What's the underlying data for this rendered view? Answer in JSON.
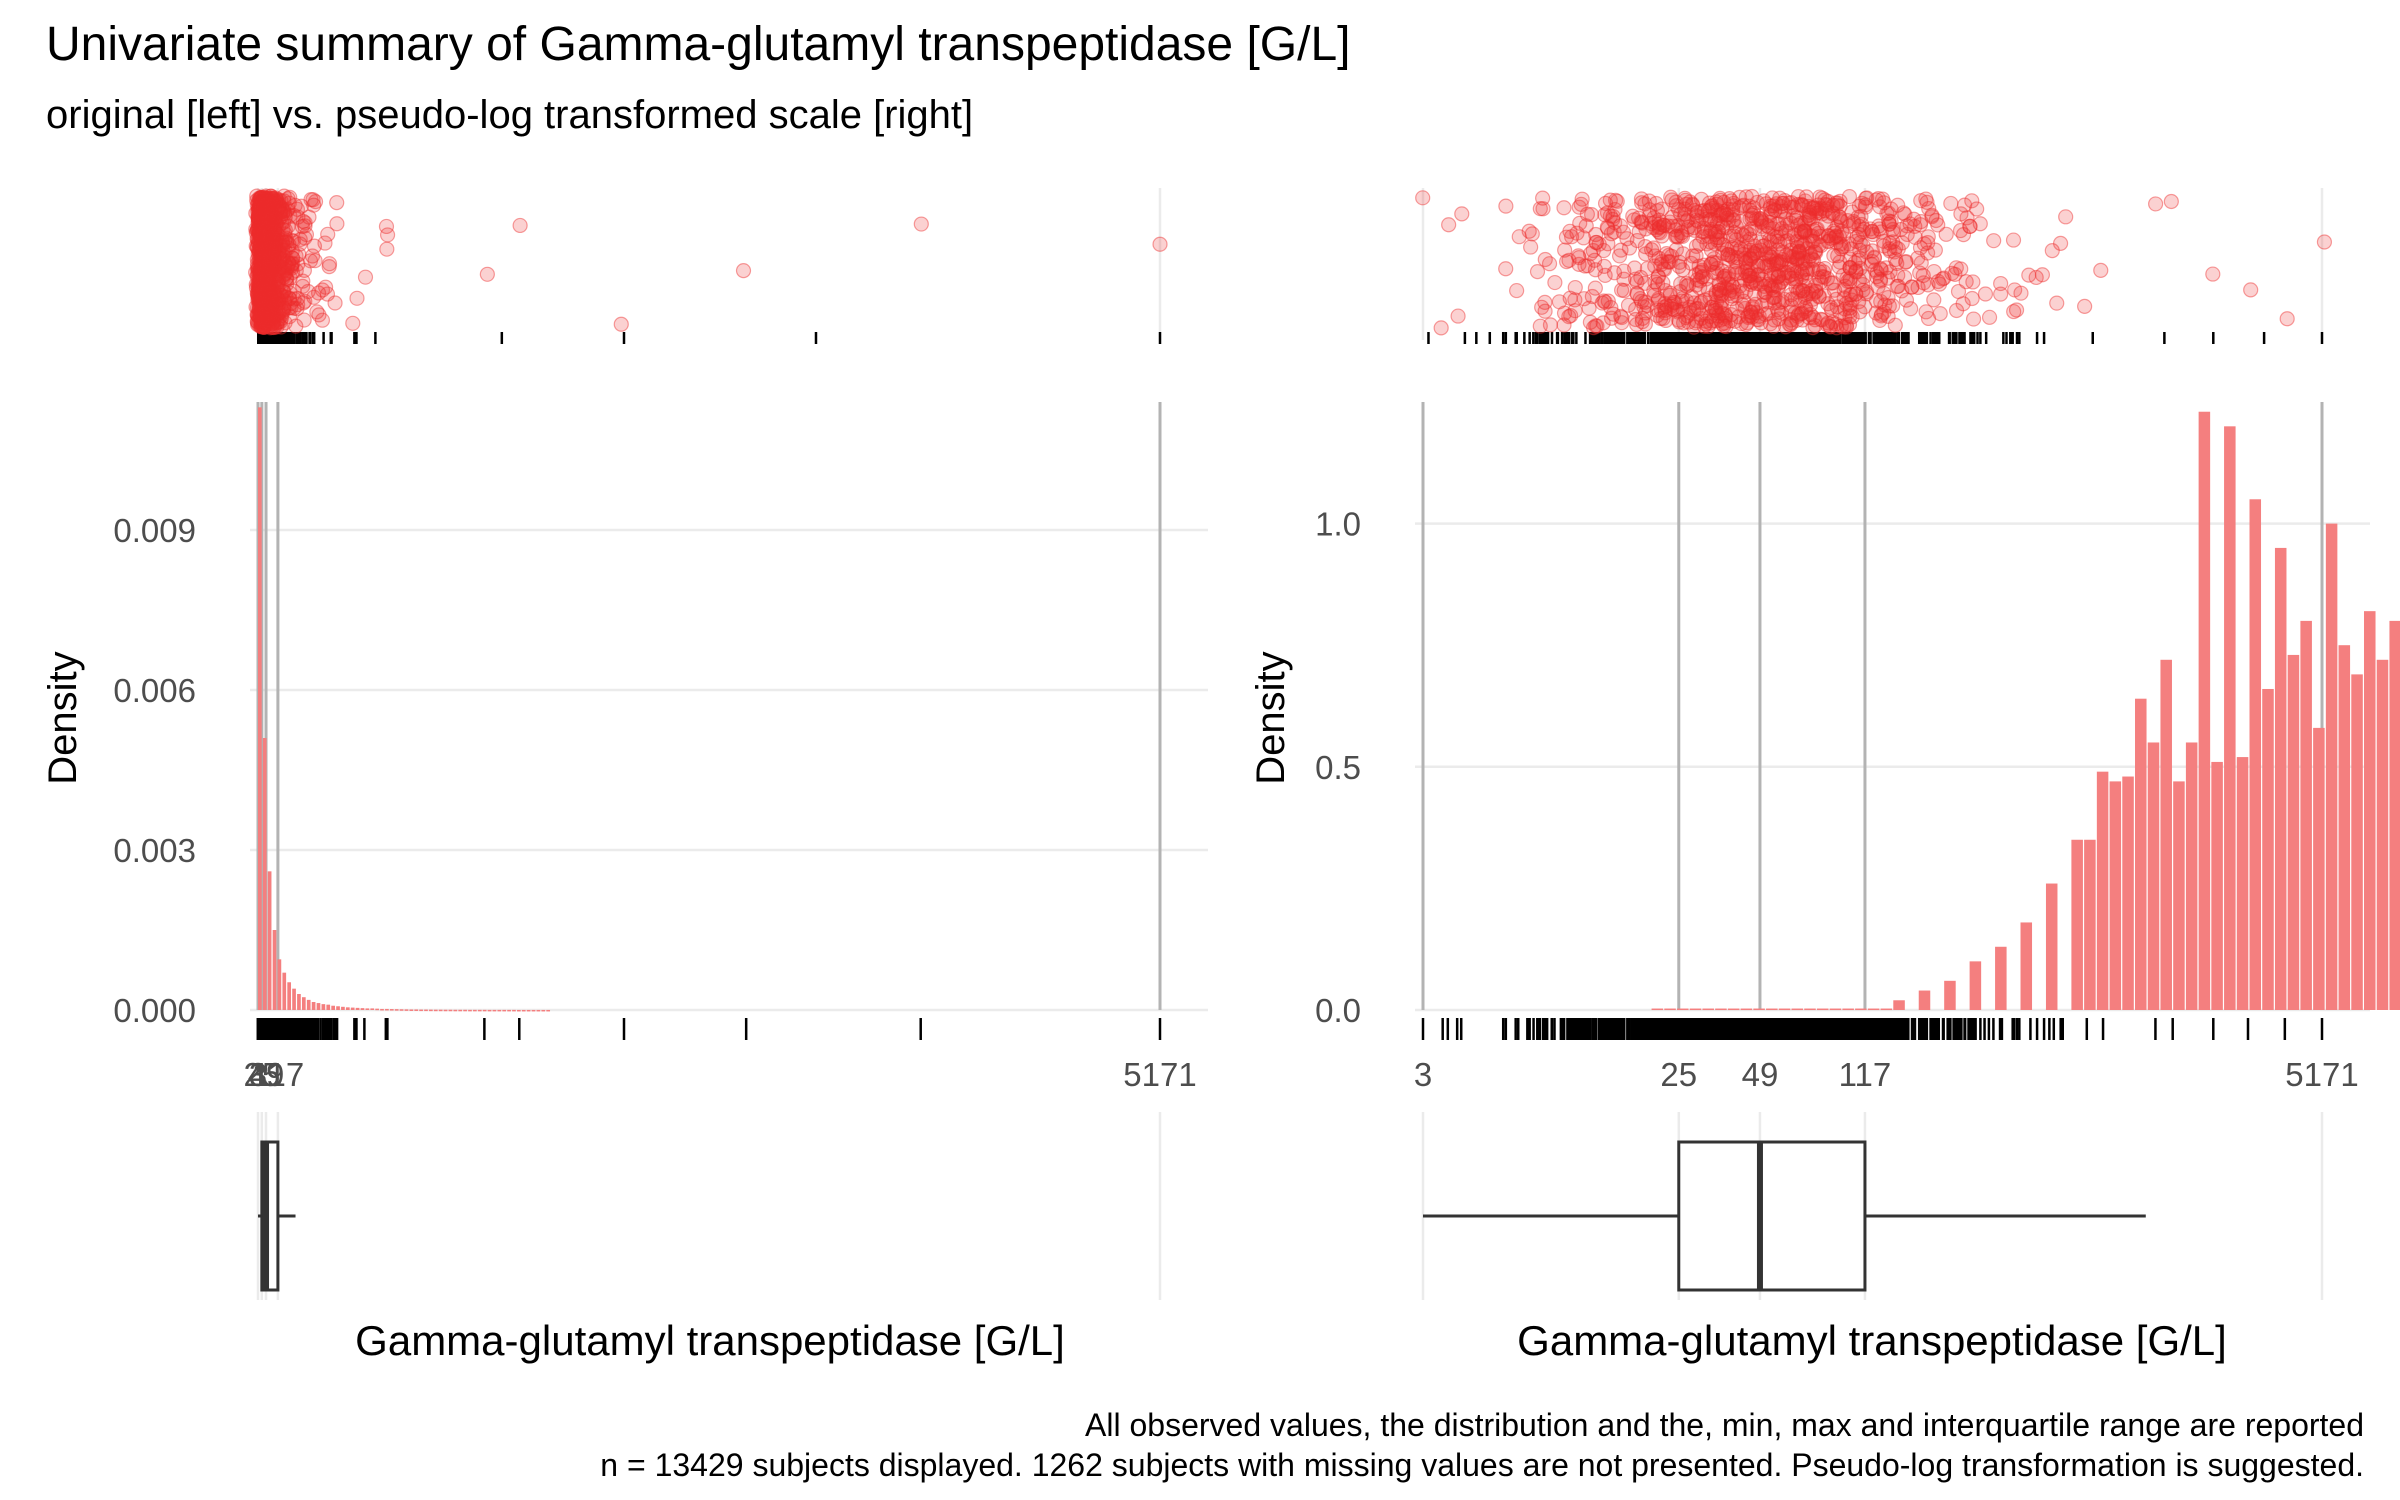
{
  "chart_data": {
    "title": "Univariate summary of Gamma-glutamyl transpeptidase [G/L]",
    "subtitle": "original [left] vs. pseudo-log transformed scale [right]",
    "caption_lines": [
      "All observed values, the distribution and the, min, max and interquartile range are reported",
      "n = 13429 subjects displayed. 1262 subjects with missing values are not presented. Pseudo-log transformation is suggested."
    ],
    "colors": {
      "points": "#EE2C2C",
      "bars": "#F47F7F",
      "grid": "#EBEBEB",
      "vline": "#B3B3B3",
      "text": "#4D4D4D"
    },
    "panels": [
      {
        "name": "original",
        "type": "bar",
        "xlabel": "Gamma-glutamyl transpeptidase [G/L]",
        "ylabel": "Density",
        "x_ticks": [
          3,
          25,
          49,
          117,
          5171
        ],
        "x_tick_labels": [
          "3",
          "25",
          "49",
          "117",
          "5171"
        ],
        "xlim": [
          3,
          5171
        ],
        "ylim": [
          0,
          0.0114
        ],
        "y_ticks": [
          0,
          0.003,
          0.006,
          0.009
        ],
        "y_tick_labels": [
          "0.000",
          "0.003",
          "0.006",
          "0.009"
        ],
        "vlines": [
          3,
          25,
          49,
          117,
          5171
        ],
        "bin_width": 28,
        "bin_start": 3,
        "values": [
          0.0113,
          0.0051,
          0.0026,
          0.0015,
          0.00095,
          0.0007,
          0.00052,
          0.0004,
          0.0003,
          0.00024,
          0.00019,
          0.00015,
          0.00013,
          0.00011,
          0.0001,
          8e-05,
          7e-05,
          6e-05,
          5e-05,
          4.5e-05,
          4e-05,
          3.5e-05,
          3e-05,
          3e-05,
          2.5e-05,
          2e-05,
          2e-05,
          1.8e-05,
          1.6e-05,
          1.4e-05,
          1.2e-05,
          1e-05,
          1e-05,
          8e-06,
          8e-06,
          7e-06,
          6e-06,
          6e-06,
          5e-06,
          5e-06,
          4e-06,
          4e-06,
          4e-06,
          3e-06,
          3e-06,
          3e-06,
          3e-06,
          2e-06,
          2e-06,
          2e-06,
          2e-06,
          2e-06,
          2e-06,
          1e-06,
          1e-06,
          1e-06,
          1e-06,
          1e-06,
          1e-06,
          1e-06
        ],
        "boxplot": {
          "min": 3,
          "q1": 25,
          "median": 49,
          "q3": 117,
          "whisker_high": 218
        }
      },
      {
        "name": "pseudo-log",
        "type": "bar",
        "xlabel": "Gamma-glutamyl transpeptidase [G/L]",
        "ylabel": "Density",
        "x_ticks": [
          3,
          25,
          49,
          117,
          5171
        ],
        "x_tick_labels": [
          "3",
          "25",
          "49",
          "117",
          "5171"
        ],
        "xlim": [
          3,
          5171
        ],
        "ylim": [
          0,
          1.25
        ],
        "y_ticks": [
          0,
          0.5,
          1.0
        ],
        "y_tick_labels": [
          "0.0",
          "0.5",
          "1.0"
        ],
        "vlines": [
          3,
          25,
          49,
          117,
          5171
        ],
        "bin_start_log": 1.3,
        "bin_width_log": 0.0458,
        "values": [
          0.003,
          0.003,
          0.003,
          0.003,
          0.003,
          0.003,
          0.003,
          0.003,
          0.003,
          0.003,
          0.003,
          0.003,
          0.003,
          0.003,
          0.003,
          0.003,
          0.003,
          0.003,
          0.003,
          0.02,
          0.0,
          0.04,
          0.0,
          0.06,
          0.0,
          0.1,
          0.0,
          0.13,
          0.0,
          0.18,
          0.0,
          0.26,
          0.0,
          0.35,
          0.35,
          0.49,
          0.47,
          0.48,
          0.64,
          0.55,
          0.72,
          0.47,
          0.55,
          1.23,
          0.51,
          1.2,
          0.52,
          1.05,
          0.66,
          0.95,
          0.73,
          0.8,
          0.58,
          1.0,
          0.75,
          0.69,
          0.82,
          0.72,
          0.8,
          0.77,
          0.89,
          0.83,
          0.69,
          0.74,
          0.73,
          0.75,
          0.8,
          0.84,
          0.73,
          0.7,
          0.74,
          0.7,
          0.6,
          0.68,
          0.67,
          0.58,
          0.56,
          0.52,
          0.49,
          0.49,
          0.45,
          0.42,
          0.41,
          0.37,
          0.35,
          0.34,
          0.33,
          0.31,
          0.28,
          0.26,
          0.24,
          0.22,
          0.2,
          0.18,
          0.16,
          0.14,
          0.13,
          0.12,
          0.1,
          0.09,
          0.08,
          0.07,
          0.06,
          0.05,
          0.045,
          0.04,
          0.035,
          0.03,
          0.025,
          0.02,
          0.018,
          0.015,
          0.012,
          0.01,
          0.008,
          0.006,
          0.005,
          0.004,
          0.003,
          0.003,
          0.002,
          0.002,
          0.002,
          0.002
        ],
        "boxplot": {
          "min": 3,
          "q1": 25,
          "median": 49,
          "q3": 117,
          "whisker_high": 1200
        }
      }
    ]
  }
}
